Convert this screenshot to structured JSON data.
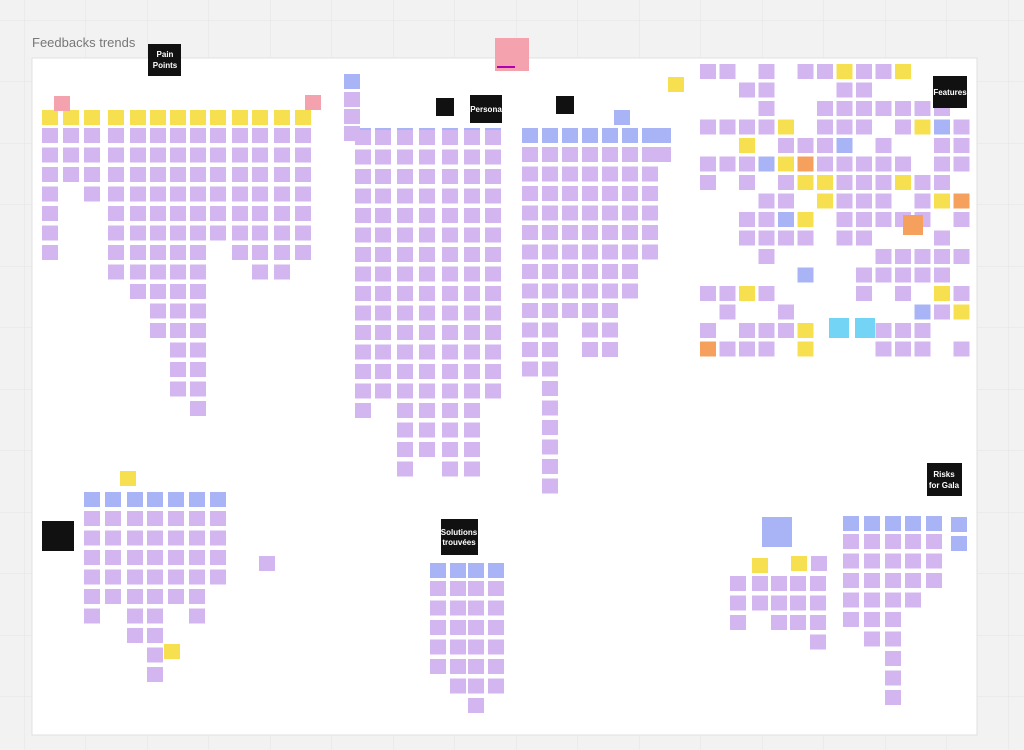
{
  "board": {
    "title": "Feedbacks trends",
    "labels": {
      "pain_points": "Pain Points",
      "persona": "Persona",
      "features": "Features",
      "solutions": "Solutions trouvées",
      "risks": "Risks for Gala"
    }
  }
}
